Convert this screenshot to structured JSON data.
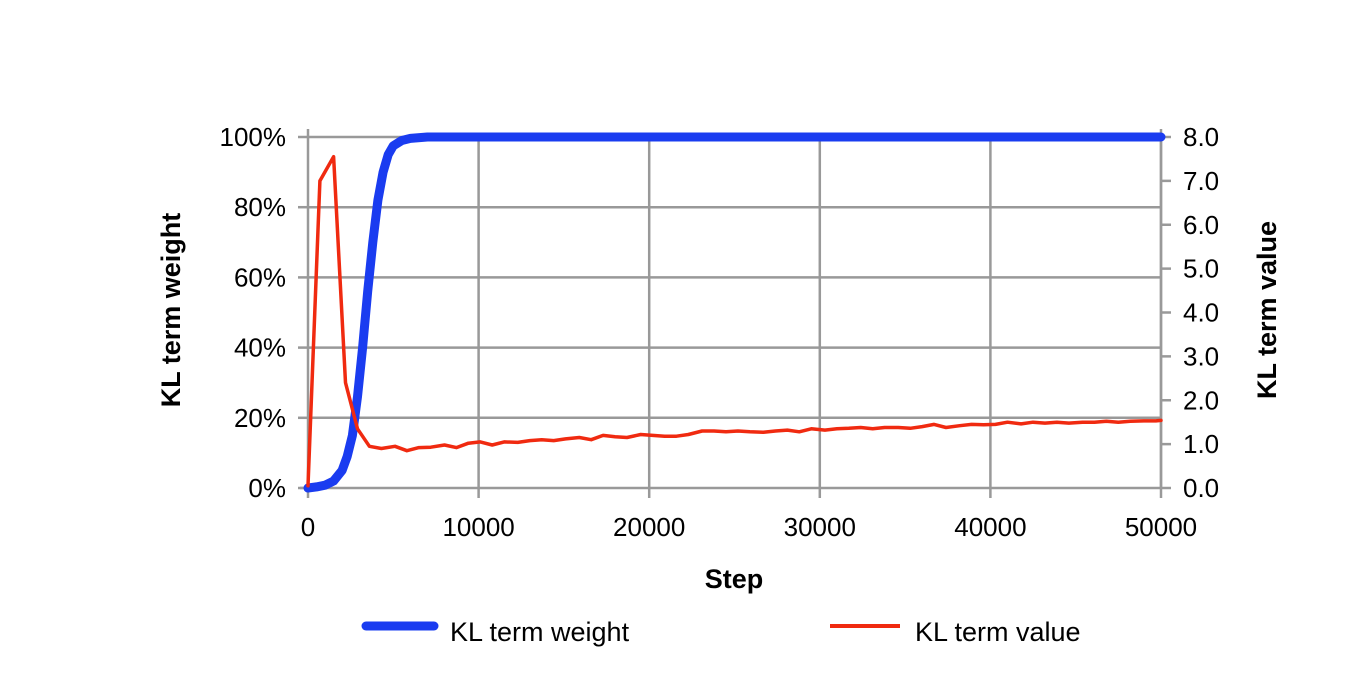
{
  "chart_data": {
    "type": "line",
    "title": "",
    "xlabel": "Step",
    "ylabel_left": "KL term weight",
    "ylabel_right": "KL term value",
    "xlim": [
      0,
      50000
    ],
    "ylim_left": [
      0,
      100
    ],
    "ylim_right": [
      0,
      8
    ],
    "x_ticks": [
      0,
      10000,
      20000,
      30000,
      40000,
      50000
    ],
    "x_tick_labels": [
      "0",
      "10000",
      "20000",
      "30000",
      "40000",
      "50000"
    ],
    "y_left_ticks": [
      0,
      20,
      40,
      60,
      80,
      100
    ],
    "y_left_tick_labels": [
      "0%",
      "20%",
      "40%",
      "60%",
      "80%",
      "100%"
    ],
    "y_right_ticks": [
      0,
      1,
      2,
      3,
      4,
      5,
      6,
      7,
      8
    ],
    "y_right_tick_labels": [
      "0.0",
      "1.0",
      "2.0",
      "3.0",
      "4.0",
      "5.0",
      "6.0",
      "7.0",
      "8.0"
    ],
    "grid": true,
    "legend_position": "bottom",
    "series": [
      {
        "name": "KL term weight",
        "axis": "left",
        "color": "#1a3cf0",
        "x": [
          0,
          500,
          1000,
          1500,
          2000,
          2300,
          2600,
          2900,
          3200,
          3500,
          3800,
          4100,
          4400,
          4700,
          5000,
          5500,
          6000,
          7000,
          10000,
          20000,
          30000,
          40000,
          50000
        ],
        "y": [
          0,
          0.3,
          0.8,
          2,
          5,
          9,
          15,
          26,
          40,
          56,
          70,
          82,
          90,
          95,
          97.5,
          99,
          99.6,
          100,
          100,
          100,
          100,
          100,
          100
        ]
      },
      {
        "name": "KL term value",
        "axis": "right",
        "color": "#f02a10",
        "x": [
          0,
          700,
          1500,
          2200,
          2900,
          3600,
          4300,
          5100,
          5800,
          6500,
          7200,
          8000,
          8700,
          9400,
          10100,
          10800,
          11500,
          12300,
          13000,
          13700,
          14400,
          15100,
          15900,
          16600,
          17300,
          18000,
          18700,
          19500,
          20200,
          20900,
          21600,
          22300,
          23100,
          23800,
          24500,
          25200,
          25900,
          26700,
          27400,
          28100,
          28800,
          29500,
          30300,
          31000,
          31700,
          32400,
          33100,
          33800,
          34600,
          35300,
          36000,
          36700,
          37400,
          38200,
          38900,
          39600,
          40300,
          41000,
          41800,
          42500,
          43200,
          43900,
          44600,
          45400,
          46100,
          46800,
          47500,
          48200,
          49000,
          49700,
          50000
        ],
        "y": [
          0.05,
          7.0,
          7.55,
          2.4,
          1.35,
          0.95,
          0.9,
          0.95,
          0.85,
          0.92,
          0.93,
          0.98,
          0.92,
          1.02,
          1.05,
          0.98,
          1.05,
          1.04,
          1.08,
          1.1,
          1.08,
          1.12,
          1.15,
          1.1,
          1.2,
          1.17,
          1.15,
          1.22,
          1.2,
          1.18,
          1.18,
          1.22,
          1.3,
          1.3,
          1.28,
          1.3,
          1.28,
          1.27,
          1.3,
          1.32,
          1.28,
          1.35,
          1.32,
          1.35,
          1.36,
          1.38,
          1.35,
          1.38,
          1.38,
          1.36,
          1.4,
          1.45,
          1.38,
          1.42,
          1.45,
          1.44,
          1.45,
          1.5,
          1.46,
          1.5,
          1.48,
          1.5,
          1.48,
          1.5,
          1.5,
          1.52,
          1.5,
          1.52,
          1.53,
          1.53,
          1.54
        ]
      }
    ]
  }
}
